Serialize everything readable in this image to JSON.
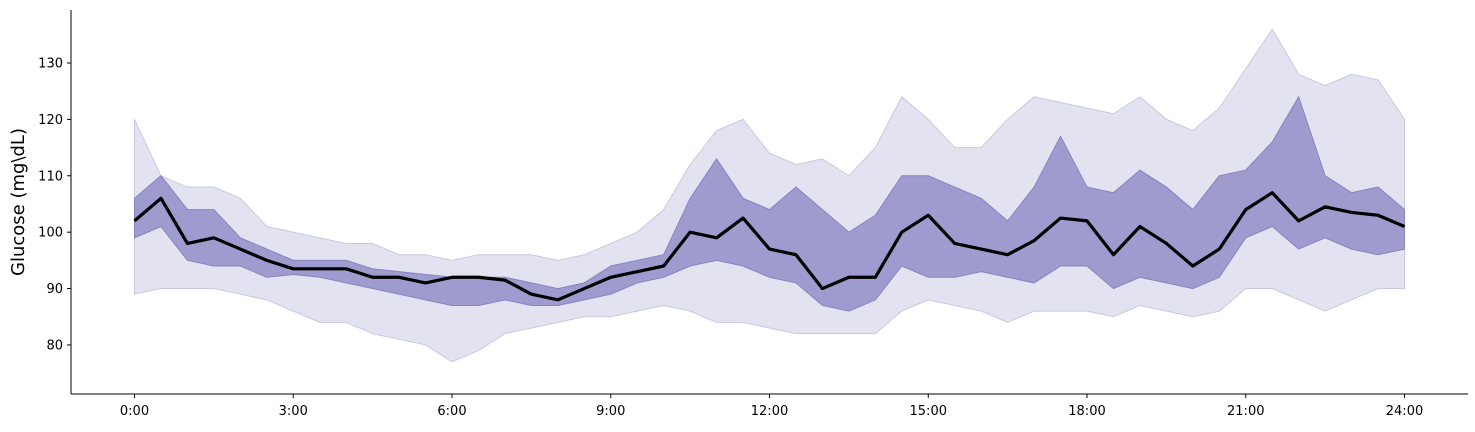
{
  "chart_data": {
    "type": "line",
    "ylabel": "Glucose (mg\\dL)",
    "x": [
      0,
      0.5,
      1,
      1.5,
      2,
      2.5,
      3,
      3.5,
      4,
      4.5,
      5,
      5.5,
      6,
      6.5,
      7,
      7.5,
      8,
      8.5,
      9,
      9.5,
      10,
      10.5,
      11,
      11.5,
      12,
      12.5,
      13,
      13.5,
      14,
      14.5,
      15,
      15.5,
      16,
      16.5,
      17,
      17.5,
      18,
      18.5,
      19,
      19.5,
      20,
      20.5,
      21,
      21.5,
      22,
      22.5,
      23,
      23.5,
      24
    ],
    "xlim": [
      -1.2,
      25.2
    ],
    "xticks": [
      {
        "value": 0,
        "label": "0:00"
      },
      {
        "value": 3,
        "label": "3:00"
      },
      {
        "value": 6,
        "label": "6:00"
      },
      {
        "value": 9,
        "label": "9:00"
      },
      {
        "value": 12,
        "label": "12:00"
      },
      {
        "value": 15,
        "label": "15:00"
      },
      {
        "value": 18,
        "label": "18:00"
      },
      {
        "value": 21,
        "label": "21:00"
      },
      {
        "value": 24,
        "label": "24:00"
      }
    ],
    "ylim": [
      71.3,
      139.4
    ],
    "yticks": [
      80,
      90,
      100,
      110,
      120,
      130
    ],
    "bands": [
      {
        "color": "#e2e2f0",
        "edge": "#c9c9e3",
        "lower": [
          89,
          90,
          90,
          90,
          89,
          88,
          86,
          84,
          84,
          82,
          81,
          80,
          77,
          79,
          82,
          83,
          84,
          85,
          85,
          86,
          87,
          86,
          84,
          84,
          83,
          82,
          82,
          82,
          82,
          86,
          88,
          87,
          86,
          84,
          86,
          86,
          86,
          85,
          87,
          86,
          85,
          86,
          90,
          90,
          88,
          86,
          88,
          90,
          90
        ],
        "upper": [
          120,
          110,
          108,
          108,
          106,
          101,
          100,
          99,
          98,
          98,
          96,
          96,
          95,
          96,
          96,
          96,
          95,
          96,
          98,
          100,
          104,
          112,
          118,
          120,
          114,
          112,
          113,
          110,
          115,
          124,
          120,
          115,
          115,
          120,
          124,
          123,
          122,
          121,
          124,
          120,
          118,
          122,
          129,
          136,
          128,
          126,
          128,
          127,
          120
        ]
      },
      {
        "color": "#9e9ccf",
        "edge": "#8584c0",
        "lower": [
          99,
          101,
          95,
          94,
          94,
          92,
          92.5,
          92,
          91,
          90,
          89,
          88,
          87,
          87,
          88,
          87,
          87,
          88,
          89,
          91,
          92,
          94,
          95,
          94,
          92,
          91,
          87,
          86,
          88,
          94,
          92,
          92,
          93,
          92,
          91,
          94,
          94,
          90,
          92,
          91,
          90,
          92,
          99,
          101,
          97,
          99,
          97,
          96,
          97
        ],
        "upper": [
          106,
          110,
          104,
          104,
          99,
          97,
          95,
          95,
          95,
          93.5,
          93,
          92.5,
          92,
          92,
          92,
          91,
          90,
          91,
          94,
          95,
          96,
          106,
          113,
          106,
          104,
          108,
          104,
          100,
          103,
          110,
          110,
          108,
          106,
          102,
          108,
          117,
          108,
          107,
          111,
          108,
          104,
          110,
          111,
          116,
          124,
          110,
          107,
          108,
          104
        ]
      }
    ],
    "series": [
      {
        "color": "#000000",
        "values": [
          102,
          106,
          98,
          99,
          97,
          95,
          93.5,
          93.5,
          93.5,
          92,
          92,
          91,
          92,
          92,
          91.5,
          89,
          88,
          90,
          92,
          93,
          94,
          100,
          99,
          102.5,
          97,
          96,
          90,
          92,
          92,
          100,
          103,
          98,
          97,
          96,
          98.5,
          102.5,
          102,
          96,
          101,
          98,
          94,
          97,
          104,
          107,
          102,
          104.5,
          103.5,
          103,
          101
        ]
      }
    ]
  }
}
